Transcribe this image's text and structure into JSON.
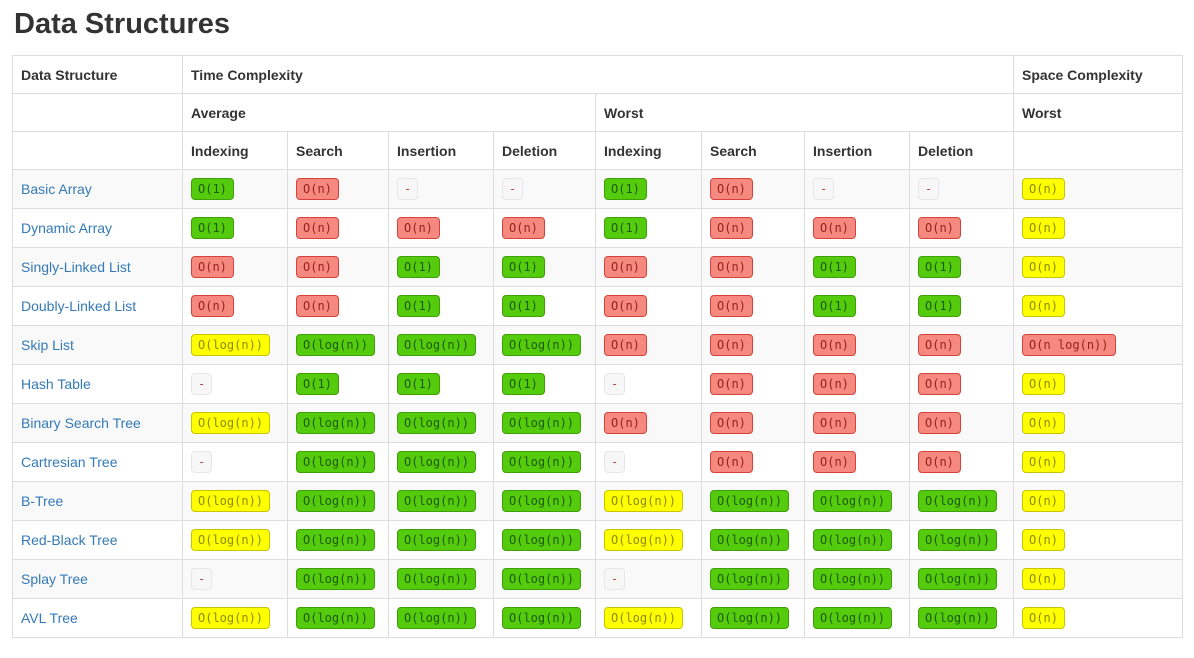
{
  "page_title": "Data Structures",
  "colors": {
    "link": "#337ab7",
    "heading_text": "#333333",
    "table_border": "#dddddd",
    "row_stripe": "#f9f9f9"
  },
  "table": {
    "headers": {
      "data_structure": "Data Structure",
      "time_complexity": "Time Complexity",
      "space_complexity": "Space Complexity",
      "average": "Average",
      "worst": "Worst",
      "space_worst": "Worst",
      "operations": [
        "Indexing",
        "Search",
        "Insertion",
        "Deletion"
      ]
    },
    "legend_colors": {
      "green": {
        "bg": "#54cb0d",
        "border": "#409e09",
        "text": "#1e5a02"
      },
      "red": {
        "bg": "#f5897f",
        "border": "#d6423a",
        "text": "#991f17"
      },
      "yellow": {
        "bg": "#ffff00",
        "border": "#c6c600",
        "text": "#8b8b00"
      },
      "gray": {
        "bg": "#f8f7f7",
        "border": "#e8e6e6",
        "text": "#b94a48"
      }
    },
    "rows": [
      {
        "name": "Basic Array",
        "average": [
          {
            "t": "O(1)",
            "c": "green"
          },
          {
            "t": "O(n)",
            "c": "red"
          },
          {
            "t": "-",
            "c": "gray"
          },
          {
            "t": "-",
            "c": "gray"
          }
        ],
        "worst": [
          {
            "t": "O(1)",
            "c": "green"
          },
          {
            "t": "O(n)",
            "c": "red"
          },
          {
            "t": "-",
            "c": "gray"
          },
          {
            "t": "-",
            "c": "gray"
          }
        ],
        "space": {
          "t": "O(n)",
          "c": "yellow"
        }
      },
      {
        "name": "Dynamic Array",
        "average": [
          {
            "t": "O(1)",
            "c": "green"
          },
          {
            "t": "O(n)",
            "c": "red"
          },
          {
            "t": "O(n)",
            "c": "red"
          },
          {
            "t": "O(n)",
            "c": "red"
          }
        ],
        "worst": [
          {
            "t": "O(1)",
            "c": "green"
          },
          {
            "t": "O(n)",
            "c": "red"
          },
          {
            "t": "O(n)",
            "c": "red"
          },
          {
            "t": "O(n)",
            "c": "red"
          }
        ],
        "space": {
          "t": "O(n)",
          "c": "yellow"
        }
      },
      {
        "name": "Singly-Linked List",
        "average": [
          {
            "t": "O(n)",
            "c": "red"
          },
          {
            "t": "O(n)",
            "c": "red"
          },
          {
            "t": "O(1)",
            "c": "green"
          },
          {
            "t": "O(1)",
            "c": "green"
          }
        ],
        "worst": [
          {
            "t": "O(n)",
            "c": "red"
          },
          {
            "t": "O(n)",
            "c": "red"
          },
          {
            "t": "O(1)",
            "c": "green"
          },
          {
            "t": "O(1)",
            "c": "green"
          }
        ],
        "space": {
          "t": "O(n)",
          "c": "yellow"
        }
      },
      {
        "name": "Doubly-Linked List",
        "average": [
          {
            "t": "O(n)",
            "c": "red"
          },
          {
            "t": "O(n)",
            "c": "red"
          },
          {
            "t": "O(1)",
            "c": "green"
          },
          {
            "t": "O(1)",
            "c": "green"
          }
        ],
        "worst": [
          {
            "t": "O(n)",
            "c": "red"
          },
          {
            "t": "O(n)",
            "c": "red"
          },
          {
            "t": "O(1)",
            "c": "green"
          },
          {
            "t": "O(1)",
            "c": "green"
          }
        ],
        "space": {
          "t": "O(n)",
          "c": "yellow"
        }
      },
      {
        "name": "Skip List",
        "average": [
          {
            "t": "O(log(n))",
            "c": "yellow"
          },
          {
            "t": "O(log(n))",
            "c": "green"
          },
          {
            "t": "O(log(n))",
            "c": "green"
          },
          {
            "t": "O(log(n))",
            "c": "green"
          }
        ],
        "worst": [
          {
            "t": "O(n)",
            "c": "red"
          },
          {
            "t": "O(n)",
            "c": "red"
          },
          {
            "t": "O(n)",
            "c": "red"
          },
          {
            "t": "O(n)",
            "c": "red"
          }
        ],
        "space": {
          "t": "O(n log(n))",
          "c": "red"
        }
      },
      {
        "name": "Hash Table",
        "average": [
          {
            "t": "-",
            "c": "gray"
          },
          {
            "t": "O(1)",
            "c": "green"
          },
          {
            "t": "O(1)",
            "c": "green"
          },
          {
            "t": "O(1)",
            "c": "green"
          }
        ],
        "worst": [
          {
            "t": "-",
            "c": "gray"
          },
          {
            "t": "O(n)",
            "c": "red"
          },
          {
            "t": "O(n)",
            "c": "red"
          },
          {
            "t": "O(n)",
            "c": "red"
          }
        ],
        "space": {
          "t": "O(n)",
          "c": "yellow"
        }
      },
      {
        "name": "Binary Search Tree",
        "average": [
          {
            "t": "O(log(n))",
            "c": "yellow"
          },
          {
            "t": "O(log(n))",
            "c": "green"
          },
          {
            "t": "O(log(n))",
            "c": "green"
          },
          {
            "t": "O(log(n))",
            "c": "green"
          }
        ],
        "worst": [
          {
            "t": "O(n)",
            "c": "red"
          },
          {
            "t": "O(n)",
            "c": "red"
          },
          {
            "t": "O(n)",
            "c": "red"
          },
          {
            "t": "O(n)",
            "c": "red"
          }
        ],
        "space": {
          "t": "O(n)",
          "c": "yellow"
        }
      },
      {
        "name": "Cartresian Tree",
        "average": [
          {
            "t": "-",
            "c": "gray"
          },
          {
            "t": "O(log(n))",
            "c": "green"
          },
          {
            "t": "O(log(n))",
            "c": "green"
          },
          {
            "t": "O(log(n))",
            "c": "green"
          }
        ],
        "worst": [
          {
            "t": "-",
            "c": "gray"
          },
          {
            "t": "O(n)",
            "c": "red"
          },
          {
            "t": "O(n)",
            "c": "red"
          },
          {
            "t": "O(n)",
            "c": "red"
          }
        ],
        "space": {
          "t": "O(n)",
          "c": "yellow"
        }
      },
      {
        "name": "B-Tree",
        "average": [
          {
            "t": "O(log(n))",
            "c": "yellow"
          },
          {
            "t": "O(log(n))",
            "c": "green"
          },
          {
            "t": "O(log(n))",
            "c": "green"
          },
          {
            "t": "O(log(n))",
            "c": "green"
          }
        ],
        "worst": [
          {
            "t": "O(log(n))",
            "c": "yellow"
          },
          {
            "t": "O(log(n))",
            "c": "green"
          },
          {
            "t": "O(log(n))",
            "c": "green"
          },
          {
            "t": "O(log(n))",
            "c": "green"
          }
        ],
        "space": {
          "t": "O(n)",
          "c": "yellow"
        }
      },
      {
        "name": "Red-Black Tree",
        "average": [
          {
            "t": "O(log(n))",
            "c": "yellow"
          },
          {
            "t": "O(log(n))",
            "c": "green"
          },
          {
            "t": "O(log(n))",
            "c": "green"
          },
          {
            "t": "O(log(n))",
            "c": "green"
          }
        ],
        "worst": [
          {
            "t": "O(log(n))",
            "c": "yellow"
          },
          {
            "t": "O(log(n))",
            "c": "green"
          },
          {
            "t": "O(log(n))",
            "c": "green"
          },
          {
            "t": "O(log(n))",
            "c": "green"
          }
        ],
        "space": {
          "t": "O(n)",
          "c": "yellow"
        }
      },
      {
        "name": "Splay Tree",
        "average": [
          {
            "t": "-",
            "c": "gray"
          },
          {
            "t": "O(log(n))",
            "c": "green"
          },
          {
            "t": "O(log(n))",
            "c": "green"
          },
          {
            "t": "O(log(n))",
            "c": "green"
          }
        ],
        "worst": [
          {
            "t": "-",
            "c": "gray"
          },
          {
            "t": "O(log(n))",
            "c": "green"
          },
          {
            "t": "O(log(n))",
            "c": "green"
          },
          {
            "t": "O(log(n))",
            "c": "green"
          }
        ],
        "space": {
          "t": "O(n)",
          "c": "yellow"
        }
      },
      {
        "name": "AVL Tree",
        "average": [
          {
            "t": "O(log(n))",
            "c": "yellow"
          },
          {
            "t": "O(log(n))",
            "c": "green"
          },
          {
            "t": "O(log(n))",
            "c": "green"
          },
          {
            "t": "O(log(n))",
            "c": "green"
          }
        ],
        "worst": [
          {
            "t": "O(log(n))",
            "c": "yellow"
          },
          {
            "t": "O(log(n))",
            "c": "green"
          },
          {
            "t": "O(log(n))",
            "c": "green"
          },
          {
            "t": "O(log(n))",
            "c": "green"
          }
        ],
        "space": {
          "t": "O(n)",
          "c": "yellow"
        }
      }
    ]
  }
}
